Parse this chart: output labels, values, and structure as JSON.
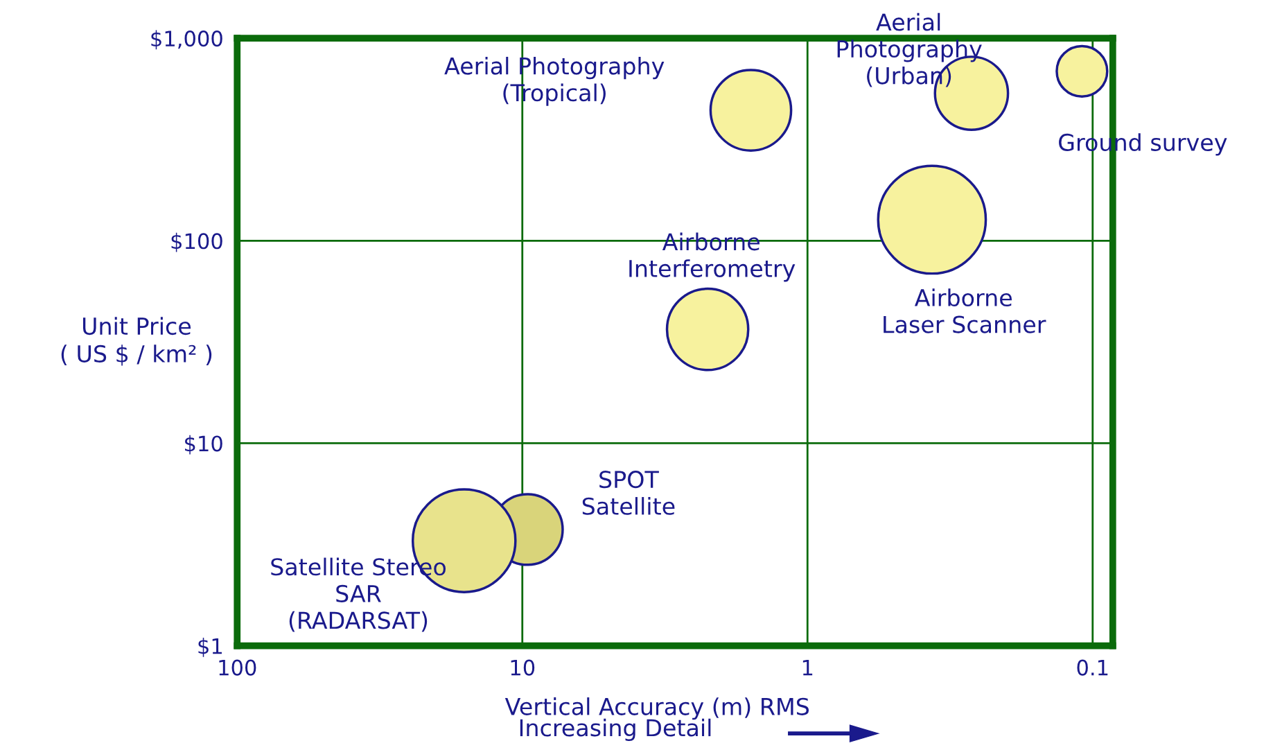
{
  "chart_data": {
    "type": "bubble",
    "xlabel": "Vertical Accuracy (m) RMS",
    "ylabel": "Unit Price\n( US $ / km² )",
    "log": "xy",
    "xlim": [
      100,
      0.085
    ],
    "ylim": [
      1,
      1000
    ],
    "xticks": [
      100,
      10,
      1,
      0.1
    ],
    "yticks": [
      {
        "value": 1,
        "label": "$1"
      },
      {
        "value": 10,
        "label": "$10"
      },
      {
        "value": 100,
        "label": "$100"
      },
      {
        "value": 1000,
        "label": "$1,000"
      }
    ],
    "grid": true,
    "series": [
      {
        "name": "Aerial Photography\n(Tropical)",
        "color": "#f7f29e",
        "x": [
          1.58
        ],
        "values": [
          441
        ],
        "sizes": [
          0.56
        ]
      },
      {
        "name": "Aerial\nPhotography\n(Urban)",
        "color": "#f7f29e",
        "x": [
          0.266
        ],
        "values": [
          535
        ],
        "sizes": [
          0.46
        ]
      },
      {
        "name": "Ground survey",
        "color": "#f7f29e",
        "x": [
          0.109
        ],
        "values": [
          687
        ],
        "sizes": [
          0.22
        ]
      },
      {
        "name": "Airborne\nLaser Scanner",
        "color": "#f7f29e",
        "x": [
          0.366
        ],
        "values": [
          127
        ],
        "sizes": [
          1
        ]
      },
      {
        "name": "Airborne\nInterferometry",
        "color": "#f7f29e",
        "x": [
          2.24
        ],
        "values": [
          36.5
        ],
        "sizes": [
          0.57
        ]
      },
      {
        "name": "SPOT\nSatellite",
        "color": "#d9d47a",
        "x": [
          9.6
        ],
        "values": [
          3.75
        ],
        "sizes": [
          0.43
        ]
      },
      {
        "name": "Satellite Stereo\nSAR\n(RADARSAT)",
        "color": "#e8e38c",
        "x": [
          16.0
        ],
        "values": [
          3.3
        ],
        "sizes": [
          0.91
        ]
      }
    ],
    "annotations": [
      "Increasing Detail"
    ]
  }
}
